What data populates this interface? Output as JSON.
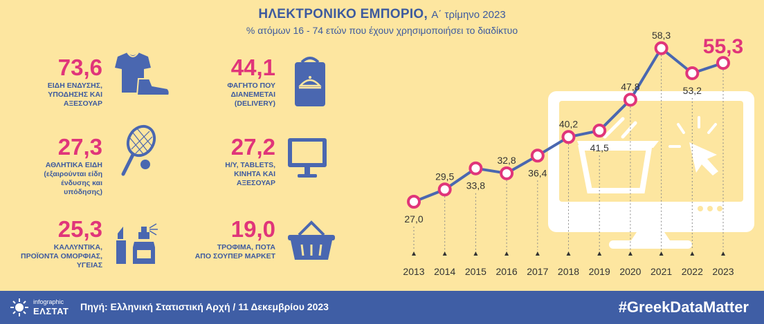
{
  "header": {
    "title_bold": "ΗΛΕΚΤΡΟΝΙΚΟ ΕΜΠΟΡΙΟ,",
    "title_rest": "Α΄ τρίμηνο 2023",
    "subtitle": "% ατόμων 16 - 74 ετών που έχουν χρησιμοποιήσει το διαδίκτυο"
  },
  "categories": [
    {
      "value": "73,6",
      "label_lines": [
        "ΕΙΔΗ ΕΝΔΥΣΗΣ,",
        "ΥΠΟΔΗΣΗΣ ΚΑΙ",
        "ΑΞΕΣΟΥΑΡ"
      ],
      "icon": "clothes-shoe-icon"
    },
    {
      "value": "44,1",
      "label_lines": [
        "ΦΑΓΗΤΟ ΠΟΥ",
        "ΔΙΑΝΕΜΕΤΑΙ",
        "(DELIVERY)"
      ],
      "icon": "food-delivery-bag-icon"
    },
    {
      "value": "27,3",
      "label_lines": [
        "ΑΘΛΗΤΙΚΑ ΕΙΔΗ",
        "(εξαιρούνται είδη",
        "ένδυσης και",
        "υπόδησης)"
      ],
      "icon": "tennis-racket-icon"
    },
    {
      "value": "27,2",
      "label_lines": [
        "Η/Υ, TABLETS,",
        "ΚΙΝΗΤΑ ΚΑΙ",
        "ΑΞΕΣΟΥΑΡ"
      ],
      "icon": "monitor-icon"
    },
    {
      "value": "25,3",
      "label_lines": [
        "ΚΑΛΛΥΝΤΙΚΑ,",
        "ΠΡΟΪΟΝΤΑ ΟΜΟΡΦΙΑΣ,",
        "ΥΓΕΙΑΣ"
      ],
      "icon": "cosmetics-icon"
    },
    {
      "value": "19,0",
      "label_lines": [
        "ΤΡΟΦΙΜΑ, ΠΟΤΑ",
        "ΑΠΟ ΣΟΥΠΕΡ ΜΑΡΚΕΤ"
      ],
      "icon": "shopping-basket-icon"
    }
  ],
  "chart_data": {
    "type": "line",
    "x": [
      "2013",
      "2014",
      "2015",
      "2016",
      "2017",
      "2018",
      "2019",
      "2020",
      "2021",
      "2022",
      "2023"
    ],
    "values": [
      27.0,
      29.5,
      33.8,
      32.8,
      36.4,
      40.2,
      41.5,
      47.8,
      58.3,
      53.2,
      55.3
    ],
    "value_labels": [
      "27,0",
      "29,5",
      "33,8",
      "32,8",
      "36,4",
      "40,2",
      "41,5",
      "47,8",
      "58,3",
      "53,2",
      "55,3"
    ],
    "line_color": "#4a67b0",
    "marker_color": "#e0357a",
    "highlight_color": "#e0357a"
  },
  "footer": {
    "brand_small": "infographic",
    "brand_big": "ΕΛΣΤΑΤ",
    "source": "Πηγή: Ελληνική Στατιστική Αρχή  / 11 Δεκεμβρίου 2023",
    "hashtag": "#GreekDataMatter"
  }
}
